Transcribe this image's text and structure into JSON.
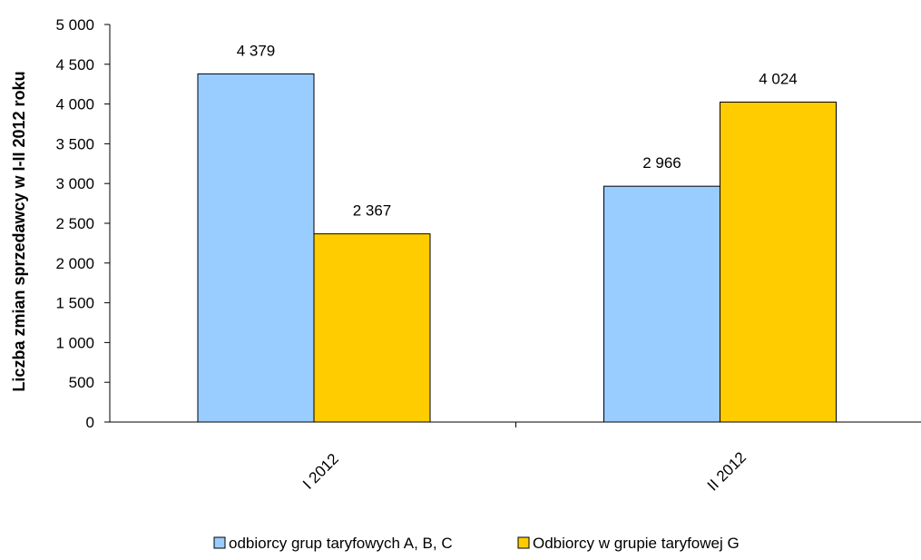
{
  "chart_data": {
    "type": "bar",
    "title": "",
    "xlabel": "",
    "ylabel": "Liczba zmian sprzedawcy w I-II 2012 roku",
    "categories": [
      "I 2012",
      "II 2012"
    ],
    "series": [
      {
        "name": "odbiorcy grup taryfowych A, B, C",
        "values": [
          4379,
          2966
        ],
        "color": "#99CCFF"
      },
      {
        "name": "Odbiorcy w grupie taryfowej G",
        "values": [
          2367,
          4024
        ],
        "color": "#FFCC00"
      }
    ],
    "data_labels": [
      [
        "4 379",
        "2 966"
      ],
      [
        "2 367",
        "4 024"
      ]
    ],
    "ylim": [
      0,
      5000
    ],
    "yticks": [
      0,
      500,
      1000,
      1500,
      2000,
      2500,
      3000,
      3500,
      4000,
      4500,
      5000
    ],
    "ytick_labels": [
      "0",
      "500",
      "1 000",
      "1 500",
      "2 000",
      "2 500",
      "3 000",
      "3 500",
      "4 000",
      "4 500",
      "5 000"
    ],
    "grid": false,
    "legend_position": "bottom"
  }
}
